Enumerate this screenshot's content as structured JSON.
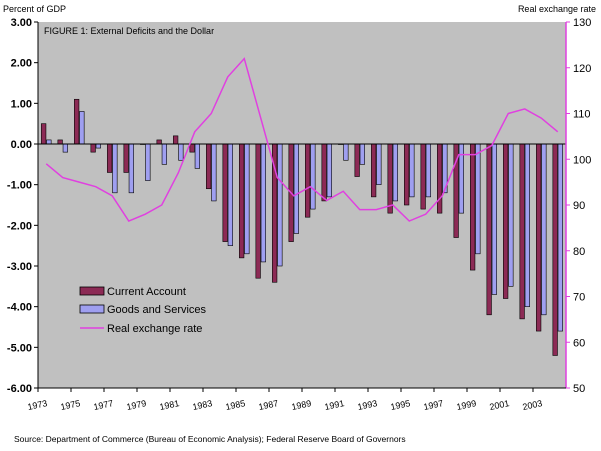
{
  "chart_data": {
    "type": "bar",
    "title": "FIGURE 1:  External Deficits and the Dollar",
    "left_axis_label": "Percent of GDP",
    "right_axis_label": "Real exchange rate",
    "source": "Source:  Department of Commerce (Bureau of Economic Analysis);  Federal Reserve Board of Governors",
    "years": [
      1973,
      1974,
      1975,
      1976,
      1977,
      1978,
      1979,
      1980,
      1981,
      1982,
      1983,
      1984,
      1985,
      1986,
      1987,
      1988,
      1989,
      1990,
      1991,
      1992,
      1993,
      1994,
      1995,
      1996,
      1997,
      1998,
      1999,
      2000,
      2001,
      2002,
      2003,
      2004
    ],
    "x_tick_labels": [
      "1973",
      "1975",
      "1977",
      "1979",
      "1981",
      "1983",
      "1985",
      "1987",
      "1989",
      "1991",
      "1993",
      "1995",
      "1997",
      "1999",
      "2001",
      "2003"
    ],
    "ylim_left": [
      -6,
      3
    ],
    "yticks_left": [
      "3.00",
      "2.00",
      "1.00",
      "0.00",
      "-1.00",
      "-2.00",
      "-3.00",
      "-4.00",
      "-5.00",
      "-6.00"
    ],
    "ylim_right": [
      50,
      130
    ],
    "yticks_right": [
      "130",
      "120",
      "110",
      "100",
      "90",
      "80",
      "70",
      "60",
      "50"
    ],
    "grid": false,
    "legend_position": "bottom-left",
    "series": [
      {
        "name": "Current Account",
        "kind": "bar",
        "color": "#8c2a55",
        "values": [
          0.5,
          0.1,
          1.1,
          -0.2,
          -0.7,
          -0.7,
          0.0,
          0.1,
          0.2,
          -0.2,
          -1.1,
          -2.4,
          -2.8,
          -3.3,
          -3.4,
          -2.4,
          -1.8,
          -1.4,
          0.0,
          -0.8,
          -1.3,
          -1.7,
          -1.5,
          -1.6,
          -1.7,
          -2.3,
          -3.1,
          -4.2,
          -3.8,
          -4.3,
          -4.6,
          -5.2
        ]
      },
      {
        "name": "Goods and Services",
        "kind": "bar",
        "color": "#9f9ff0",
        "values": [
          0.1,
          -0.2,
          0.8,
          -0.1,
          -1.2,
          -1.2,
          -0.9,
          -0.5,
          -0.4,
          -0.6,
          -1.4,
          -2.5,
          -2.7,
          -2.9,
          -3.0,
          -2.2,
          -1.6,
          -1.3,
          -0.4,
          -0.5,
          -1.0,
          -1.4,
          -1.3,
          -1.3,
          -1.2,
          -1.7,
          -2.7,
          -3.7,
          -3.5,
          -4.0,
          -4.2,
          -4.6
        ]
      },
      {
        "name": "Real exchange rate",
        "kind": "line",
        "axis": "right",
        "color": "#e040e0",
        "values": [
          99,
          96,
          95,
          94,
          92,
          86.5,
          88,
          90,
          97,
          106,
          110,
          118,
          122,
          109,
          96,
          92,
          94,
          91,
          93,
          89,
          89,
          90,
          86.5,
          88,
          92,
          101,
          101,
          103,
          110,
          111,
          109,
          106
        ]
      }
    ]
  }
}
